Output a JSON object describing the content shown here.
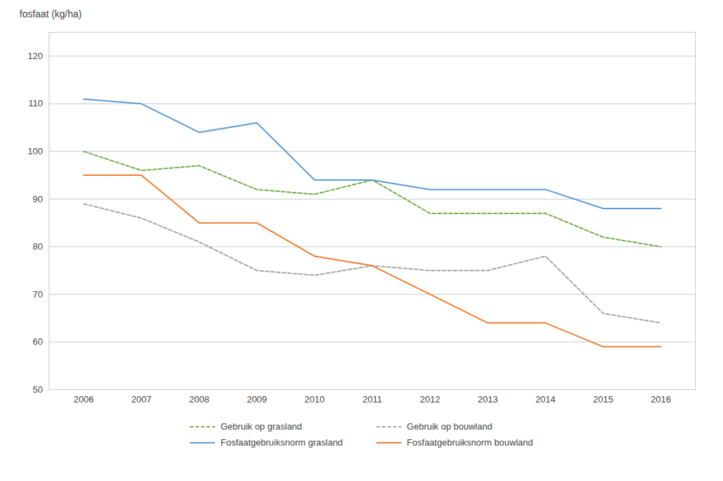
{
  "chart_data": {
    "type": "line",
    "ylabel": "fosfaat (kg/ha)",
    "x": [
      2006,
      2007,
      2008,
      2009,
      2010,
      2011,
      2012,
      2013,
      2014,
      2015,
      2016
    ],
    "series": [
      {
        "name": "Gebruik op grasland",
        "color": "#70AD47",
        "line_style": "dashed",
        "values": [
          100,
          96,
          97,
          92,
          91,
          94,
          87,
          87,
          87,
          82,
          80
        ]
      },
      {
        "name": "Gebruik op bouwland",
        "color": "#A5A5A5",
        "line_style": "dashed",
        "values": [
          89,
          86,
          81,
          75,
          74,
          76,
          75,
          75,
          78,
          66,
          64
        ]
      },
      {
        "name": "Fosfaatgebruiksnorm grasland",
        "color": "#5B9BD5",
        "line_style": "solid",
        "values": [
          111,
          110,
          104,
          106,
          94,
          94,
          92,
          92,
          92,
          88,
          88
        ]
      },
      {
        "name": "Fosfaatgebruiksnorm bouwland",
        "color": "#ED7D31",
        "line_style": "solid",
        "values": [
          95,
          95,
          85,
          85,
          78,
          76,
          70,
          64,
          64,
          59,
          59
        ]
      }
    ],
    "xlim": [
      2005.4,
      2016.6
    ],
    "xticks": [
      2006,
      2007,
      2008,
      2009,
      2010,
      2011,
      2012,
      2013,
      2014,
      2015,
      2016
    ],
    "ylim": [
      50,
      125
    ],
    "yticks": [
      50,
      60,
      70,
      80,
      90,
      100,
      110,
      120
    ],
    "grid": true,
    "legend": "bottom"
  }
}
